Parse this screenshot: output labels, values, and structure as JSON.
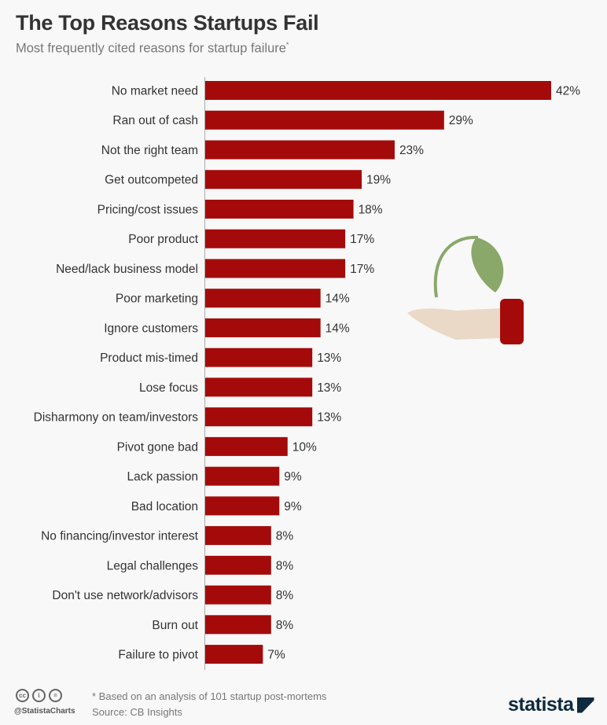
{
  "title": "The Top Reasons Startups Fail",
  "subtitle": "Most frequently cited reasons for startup failure",
  "subtitle_mark": "*",
  "colors": {
    "bar": "#a50a0a",
    "leaf": "#8aa86a",
    "hand": "#ead9c6",
    "text": "#333333"
  },
  "chart_data": {
    "type": "bar",
    "orientation": "horizontal",
    "title": "The Top Reasons Startups Fail",
    "categories": [
      "No market need",
      "Ran out of cash",
      "Not the right team",
      "Get outcompeted",
      "Pricing/cost issues",
      "Poor product",
      "Need/lack business model",
      "Poor marketing",
      "Ignore customers",
      "Product mis-timed",
      "Lose focus",
      "Disharmony on team/investors",
      "Pivot gone bad",
      "Lack passion",
      "Bad location",
      "No financing/investor interest",
      "Legal challenges",
      "Don't use network/advisors",
      "Burn out",
      "Failure to pivot"
    ],
    "values": [
      42,
      29,
      23,
      19,
      18,
      17,
      17,
      14,
      14,
      13,
      13,
      13,
      10,
      9,
      9,
      8,
      8,
      8,
      8,
      7
    ],
    "value_suffix": "%",
    "grid": false
  },
  "footer": {
    "note": "* Based on an analysis of 101 startup post-mortems",
    "source": "Source: CB Insights",
    "handle": "@StatistaCharts",
    "license_icons": [
      "cc",
      "by",
      "nd"
    ],
    "logo": "statista"
  }
}
